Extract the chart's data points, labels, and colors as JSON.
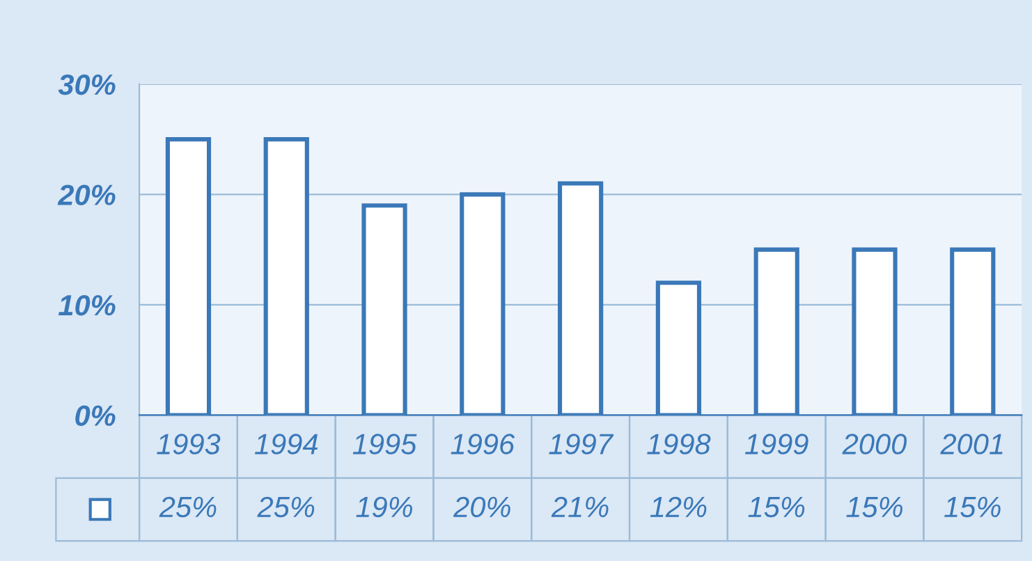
{
  "chart_data": {
    "type": "bar",
    "categories": [
      "1993",
      "1994",
      "1995",
      "1996",
      "1997",
      "1998",
      "1999",
      "2000",
      "2001"
    ],
    "values": [
      25,
      25,
      19,
      20,
      21,
      12,
      15,
      15,
      15
    ],
    "value_labels": [
      "25%",
      "25%",
      "19%",
      "20%",
      "21%",
      "12%",
      "15%",
      "15%",
      "15%"
    ],
    "color": "#ffffff",
    "ylim": [
      0,
      30
    ],
    "yticks": [
      {
        "value": 0,
        "label": "0%"
      },
      {
        "value": 10,
        "label": "10%"
      },
      {
        "value": 20,
        "label": "20%"
      },
      {
        "value": 30,
        "label": "30%"
      }
    ],
    "grid": "y"
  }
}
